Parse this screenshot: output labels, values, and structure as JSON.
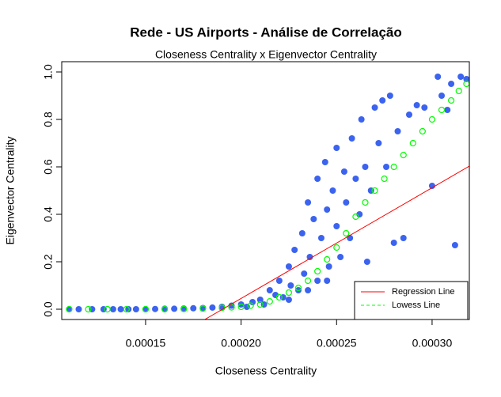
{
  "chart_data": {
    "type": "scatter",
    "title": "Rede - US Airports - Análise de Correlação",
    "subtitle": "Closeness Centrality x Eigenvector Centrality",
    "x_label": "Closeness Centrality",
    "y_label": "Eigenvector Centrality",
    "xlim": [
      0.0001061,
      0.0003195
    ],
    "ylim": [
      -0.0433,
      1.0433
    ],
    "xticks": [
      0.00015,
      {
        "value": 0.0002,
        "label": "0.00020"
      },
      0.00025,
      {
        "value": 0.0003,
        "label": "0.00030"
      }
    ],
    "yticks": [
      {
        "value": 0,
        "label": "0.0"
      },
      0.2,
      0.4,
      0.6,
      0.8,
      {
        "value": 1,
        "label": "1.0"
      }
    ],
    "legend_position": "bottomright",
    "series": [
      {
        "kind": "points",
        "color": "#3b63f0",
        "x": [
          0.00011,
          0.000115,
          0.000122,
          0.000128,
          0.000133,
          0.000137,
          0.000141,
          0.000145,
          0.00015,
          0.000155,
          0.00016,
          0.000165,
          0.00017,
          0.000175,
          0.00018,
          0.000185,
          0.00019,
          0.000195,
          0.0002,
          0.000203,
          0.000206,
          0.00021,
          0.000212,
          0.000215,
          0.000218,
          0.00022,
          0.000222,
          0.000225,
          0.000226,
          0.000228,
          0.00023,
          0.000232,
          0.000233,
          0.000235,
          0.000236,
          0.000238,
          0.00024,
          0.00024,
          0.000242,
          0.000244,
          0.000245,
          0.000246,
          0.000248,
          0.00025,
          0.00025,
          0.000252,
          0.000254,
          0.000255,
          0.000257,
          0.000258,
          0.00026,
          0.000262,
          0.000263,
          0.000265,
          0.000266,
          0.000268,
          0.00027,
          0.000272,
          0.000274,
          0.000276,
          0.000278,
          0.00028,
          0.000282,
          0.000285,
          0.000288,
          0.000292,
          0.000296,
          0.0003,
          0.000303,
          0.000305,
          0.000308,
          0.00031,
          0.000312,
          0.000315,
          0.000318,
          0.000225,
          0.000235,
          0.000245
        ],
        "values": [
          0,
          0,
          0,
          0,
          0,
          0,
          0,
          0,
          0,
          0.001,
          0.002,
          0.002,
          0.003,
          0.004,
          0.005,
          0.007,
          0.01,
          0.015,
          0.02,
          0.01,
          0.03,
          0.04,
          0.02,
          0.08,
          0.06,
          0.12,
          0.05,
          0.18,
          0.1,
          0.25,
          0.08,
          0.32,
          0.15,
          0.45,
          0.22,
          0.38,
          0.55,
          0.12,
          0.3,
          0.62,
          0.42,
          0.18,
          0.5,
          0.35,
          0.68,
          0.22,
          0.58,
          0.45,
          0.3,
          0.72,
          0.55,
          0.4,
          0.8,
          0.6,
          0.2,
          0.5,
          0.85,
          0.7,
          0.88,
          0.6,
          0.9,
          0.28,
          0.75,
          0.3,
          0.82,
          0.86,
          0.85,
          0.52,
          0.98,
          0.9,
          0.84,
          0.95,
          0.27,
          0.98,
          0.97,
          0.04,
          0.08,
          0.12
        ]
      },
      {
        "kind": "open-points",
        "name": "Lowess Line",
        "color": "#00ff00",
        "dash": true,
        "x": [
          0.00011,
          0.00012,
          0.00013,
          0.00014,
          0.00015,
          0.00016,
          0.00017,
          0.00018,
          0.00019,
          0.000195,
          0.0002,
          0.000205,
          0.00021,
          0.000215,
          0.00022,
          0.000225,
          0.00023,
          0.000235,
          0.00024,
          0.000245,
          0.00025,
          0.000255,
          0.00026,
          0.000265,
          0.00027,
          0.000275,
          0.00028,
          0.000285,
          0.00029,
          0.000295,
          0.0003,
          0.000305,
          0.00031,
          0.000314,
          0.000318
        ],
        "values": [
          0,
          0,
          0,
          0,
          0,
          0,
          0.001,
          0.003,
          0.006,
          0.008,
          0.01,
          0.015,
          0.02,
          0.033,
          0.05,
          0.07,
          0.09,
          0.12,
          0.16,
          0.21,
          0.26,
          0.32,
          0.39,
          0.45,
          0.5,
          0.55,
          0.6,
          0.65,
          0.7,
          0.75,
          0.8,
          0.84,
          0.88,
          0.92,
          0.95
        ]
      },
      {
        "kind": "line",
        "name": "Regression Line",
        "color": "#ff0000",
        "x": [
          0.000181,
          0.0003195
        ],
        "values": [
          -0.0433,
          0.603
        ]
      }
    ]
  }
}
